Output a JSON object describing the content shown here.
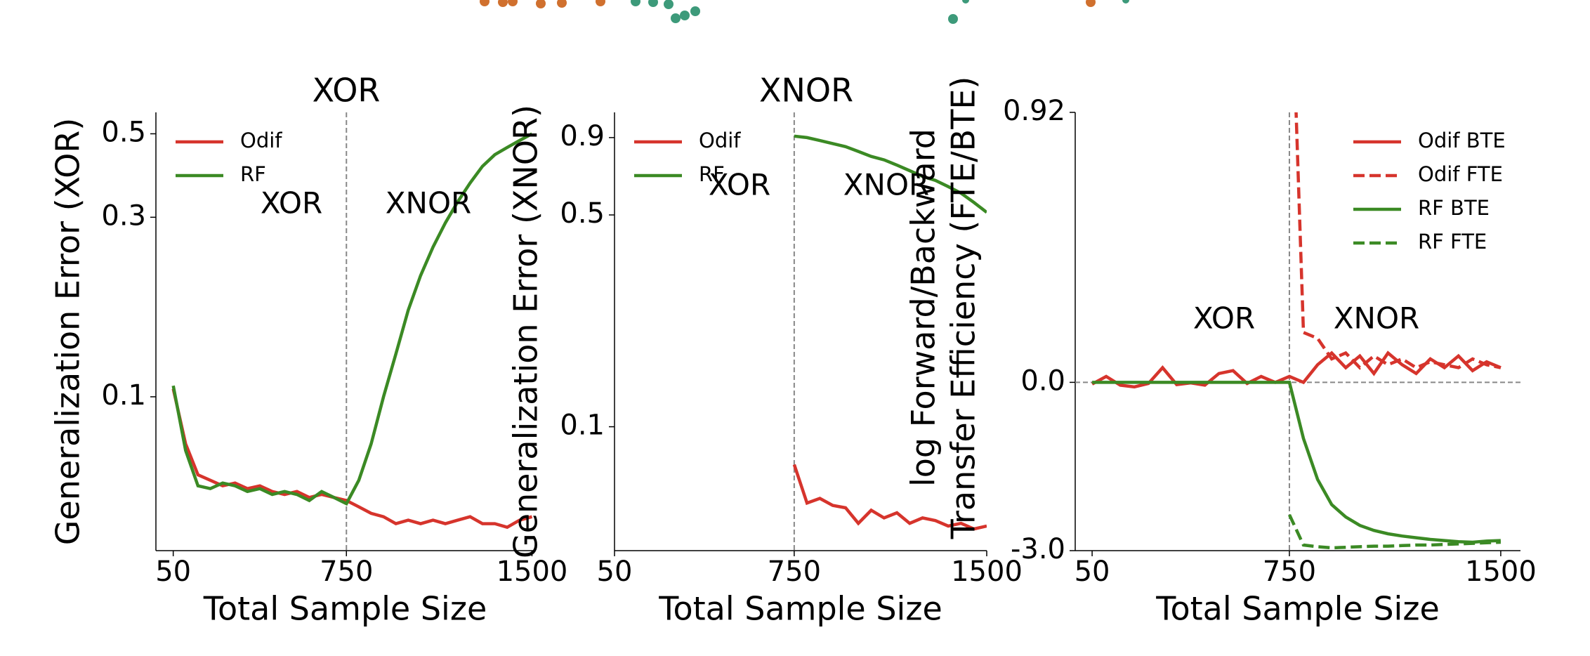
{
  "chart_data": [
    {
      "type": "line",
      "title": "XOR",
      "ylabel": [
        "Generalization Error (XOR)"
      ],
      "xlabel": "Total Sample Size",
      "annotations": [
        "XOR",
        "XNOR"
      ],
      "vline": 750,
      "yscale": "log",
      "legend": "upper left",
      "xlim": [
        -20,
        1510
      ],
      "xticks": [
        50,
        750,
        1500
      ],
      "ylim": [
        0.039,
        0.57
      ],
      "yticks": [
        0.1,
        0.3,
        0.5
      ],
      "x": [
        50,
        100,
        150,
        200,
        250,
        300,
        350,
        400,
        450,
        500,
        550,
        600,
        650,
        700,
        750,
        800,
        850,
        900,
        950,
        1000,
        1050,
        1100,
        1150,
        1200,
        1250,
        1300,
        1350,
        1400,
        1450,
        1500
      ],
      "series": [
        {
          "name": "Odif",
          "color": "#d6342c",
          "linestyle": "solid",
          "values": [
            0.105,
            0.075,
            0.062,
            0.06,
            0.058,
            0.059,
            0.057,
            0.058,
            0.056,
            0.055,
            0.056,
            0.054,
            0.055,
            0.054,
            0.053,
            0.051,
            0.049,
            0.048,
            0.046,
            0.047,
            0.046,
            0.047,
            0.046,
            0.047,
            0.048,
            0.046,
            0.046,
            0.045,
            0.047,
            0.048
          ]
        },
        {
          "name": "RF",
          "color": "#3b8a24",
          "linestyle": "solid",
          "values": [
            0.107,
            0.072,
            0.058,
            0.057,
            0.059,
            0.058,
            0.056,
            0.057,
            0.055,
            0.056,
            0.055,
            0.053,
            0.056,
            0.054,
            0.052,
            0.06,
            0.075,
            0.1,
            0.13,
            0.17,
            0.21,
            0.25,
            0.29,
            0.33,
            0.37,
            0.41,
            0.44,
            0.46,
            0.48,
            0.5
          ]
        }
      ]
    },
    {
      "type": "line",
      "title": "XNOR",
      "ylabel": [
        "Generalization Error (XNOR)"
      ],
      "xlabel": "Total Sample Size",
      "annotations": [
        "XOR",
        "XNOR"
      ],
      "vline": 750,
      "yscale": "log",
      "legend": "upper left",
      "xlim": [
        50,
        1500
      ],
      "xticks": [
        50,
        750,
        1500
      ],
      "ylim": [
        0.039,
        1.09
      ],
      "yticks": [
        0.1,
        0.5,
        0.9
      ],
      "x": [
        50,
        100,
        150,
        200,
        250,
        300,
        350,
        400,
        450,
        500,
        550,
        600,
        650,
        700,
        750,
        800,
        850,
        900,
        950,
        1000,
        1050,
        1100,
        1150,
        1200,
        1250,
        1300,
        1350,
        1400,
        1450,
        1500
      ],
      "series": [
        {
          "name": "Odif",
          "color": "#d6342c",
          "linestyle": "solid",
          "values": [
            null,
            null,
            null,
            null,
            null,
            null,
            null,
            null,
            null,
            null,
            null,
            null,
            null,
            null,
            0.075,
            0.056,
            0.058,
            0.055,
            0.054,
            0.048,
            0.053,
            0.05,
            0.052,
            0.048,
            0.05,
            0.049,
            0.047,
            0.048,
            0.046,
            0.047
          ]
        },
        {
          "name": "RF",
          "color": "#3b8a24",
          "linestyle": "solid",
          "values": [
            null,
            null,
            null,
            null,
            null,
            null,
            null,
            null,
            null,
            null,
            null,
            null,
            null,
            null,
            0.91,
            0.9,
            0.88,
            0.86,
            0.84,
            0.81,
            0.78,
            0.76,
            0.73,
            0.7,
            0.67,
            0.65,
            0.62,
            0.59,
            0.55,
            0.51
          ]
        }
      ]
    },
    {
      "type": "line",
      "ylabel": [
        "log Forward/Backward",
        "Transfer Efficiency (FTE/BTE)"
      ],
      "xlabel": "Total Sample Size",
      "annotations": [
        "XOR",
        "XNOR"
      ],
      "vline": 750,
      "hline": 0,
      "yscale": "split",
      "legend": "upper right",
      "xlim": [
        -10,
        1570
      ],
      "xticks": [
        50,
        750,
        1500
      ],
      "ylim": [
        -3.0,
        0.92
      ],
      "yticks": [
        {
          "value": -3.0,
          "label": "-3.0"
        },
        {
          "value": 0,
          "label": "0.0"
        },
        0.92
      ],
      "x": [
        50,
        100,
        150,
        200,
        250,
        300,
        350,
        400,
        450,
        500,
        550,
        600,
        650,
        700,
        750,
        800,
        850,
        900,
        950,
        1000,
        1050,
        1100,
        1150,
        1200,
        1250,
        1300,
        1350,
        1400,
        1450,
        1500
      ],
      "series": [
        {
          "name": "Odif BTE",
          "color": "#d6342c",
          "linestyle": "solid",
          "values": [
            -0.03,
            0.02,
            -0.05,
            -0.08,
            -0.02,
            0.05,
            -0.04,
            -0.01,
            -0.05,
            0.03,
            0.04,
            -0.02,
            0.02,
            0.0,
            0.02,
            0.0,
            0.06,
            0.1,
            0.05,
            0.09,
            0.03,
            0.1,
            0.06,
            0.03,
            0.08,
            0.05,
            0.09,
            0.04,
            0.07,
            0.05
          ]
        },
        {
          "name": "Odif FTE",
          "color": "#d6342c",
          "linestyle": "dashed",
          "values": [
            null,
            null,
            null,
            null,
            null,
            null,
            null,
            null,
            null,
            null,
            null,
            null,
            null,
            null,
            1.6,
            0.17,
            0.15,
            0.08,
            0.1,
            0.05,
            0.09,
            0.06,
            0.08,
            0.05,
            0.07,
            0.06,
            0.05,
            0.08,
            0.06,
            0.05
          ]
        },
        {
          "name": "RF BTE",
          "color": "#3b8a24",
          "linestyle": "solid",
          "values": [
            0.0,
            0.0,
            0.0,
            0.0,
            0.0,
            0.0,
            0.0,
            0.0,
            0.0,
            0.0,
            0.0,
            0.0,
            0.0,
            0.0,
            0.0,
            -1.0,
            -1.73,
            -2.18,
            -2.4,
            -2.55,
            -2.64,
            -2.7,
            -2.74,
            -2.77,
            -2.8,
            -2.82,
            -2.84,
            -2.85,
            -2.83,
            -2.82
          ]
        },
        {
          "name": "RF FTE",
          "color": "#3b8a24",
          "linestyle": "dashed",
          "values": [
            null,
            null,
            null,
            null,
            null,
            null,
            null,
            null,
            null,
            null,
            null,
            null,
            null,
            null,
            -2.36,
            -2.9,
            -2.93,
            -2.95,
            -2.94,
            -2.93,
            -2.92,
            -2.92,
            -2.91,
            -2.9,
            -2.9,
            -2.89,
            -2.88,
            -2.87,
            -2.86,
            -2.85
          ]
        }
      ]
    }
  ]
}
